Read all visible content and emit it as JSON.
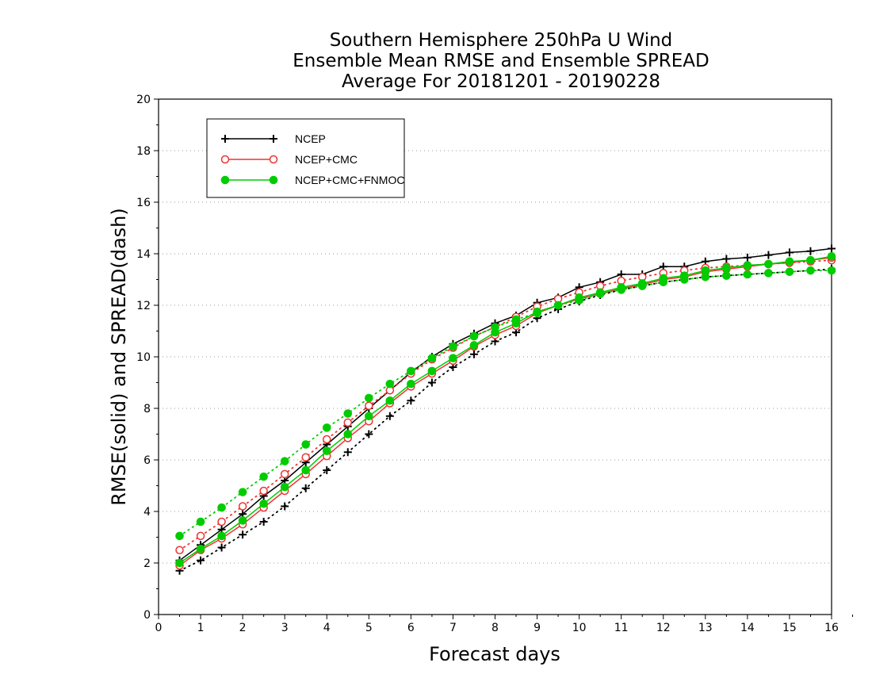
{
  "chart_data": {
    "type": "line",
    "title_lines": [
      "Southern Hemisphere 250hPa U Wind",
      "Ensemble Mean RMSE and Ensemble SPREAD",
      "Average For 20181201 - 20190228"
    ],
    "xlabel": "Forecast days",
    "ylabel": "RMSE(solid) and SPREAD(dash)",
    "xlim": [
      0,
      16
    ],
    "ylim": [
      0,
      20
    ],
    "xticks": [
      "0",
      "1",
      "2",
      "3",
      "4",
      "5",
      "6",
      "7",
      "8",
      "9",
      "10",
      "11",
      "12",
      "13",
      "14",
      "15",
      "16"
    ],
    "yticks": [
      "0",
      "2",
      "4",
      "6",
      "8",
      "10",
      "12",
      "14",
      "16",
      "18",
      "20"
    ],
    "grid": "horizontal dotted",
    "legend_position": "top-left",
    "x": [
      0.5,
      1,
      1.5,
      2,
      2.5,
      3,
      3.5,
      4,
      4.5,
      5,
      5.5,
      6,
      6.5,
      7,
      7.5,
      8,
      8.5,
      9,
      9.5,
      10,
      10.5,
      11,
      11.5,
      12,
      12.5,
      13,
      13.5,
      14,
      14.5,
      15,
      15.5,
      16
    ],
    "series": [
      {
        "name": "NCEP",
        "color": "#000000",
        "marker": "plus",
        "rmse": [
          2.1,
          2.7,
          3.3,
          3.9,
          4.6,
          5.2,
          5.9,
          6.6,
          7.3,
          8.0,
          8.7,
          9.4,
          10.0,
          10.5,
          10.9,
          11.3,
          11.6,
          12.1,
          12.3,
          12.7,
          12.9,
          13.2,
          13.2,
          13.5,
          13.5,
          13.7,
          13.8,
          13.85,
          13.95,
          14.05,
          14.1,
          14.2
        ],
        "spread": [
          1.7,
          2.1,
          2.6,
          3.1,
          3.6,
          4.2,
          4.9,
          5.6,
          6.3,
          7.0,
          7.7,
          8.3,
          9.0,
          9.6,
          10.1,
          10.6,
          10.95,
          11.5,
          11.85,
          12.15,
          12.4,
          12.6,
          12.75,
          12.9,
          13.0,
          13.1,
          13.15,
          13.2,
          13.25,
          13.3,
          13.35,
          13.4
        ]
      },
      {
        "name": "NCEP+CMC",
        "color": "#ee3333",
        "marker": "open-circle",
        "rmse": [
          1.9,
          2.5,
          2.95,
          3.5,
          4.15,
          4.8,
          5.45,
          6.15,
          6.85,
          7.5,
          8.2,
          8.85,
          9.35,
          9.85,
          10.4,
          10.85,
          11.2,
          11.7,
          12.0,
          12.25,
          12.45,
          12.65,
          12.8,
          13.0,
          13.1,
          13.3,
          13.4,
          13.5,
          13.6,
          13.65,
          13.75,
          13.85
        ],
        "spread": [
          2.5,
          3.05,
          3.6,
          4.2,
          4.8,
          5.45,
          6.1,
          6.8,
          7.45,
          8.1,
          8.7,
          9.35,
          9.9,
          10.35,
          10.8,
          11.15,
          11.55,
          11.95,
          12.25,
          12.5,
          12.75,
          12.95,
          13.1,
          13.25,
          13.35,
          13.45,
          13.5,
          13.55,
          13.6,
          13.65,
          13.7,
          13.75
        ]
      },
      {
        "name": "NCEP+CMC+FNMOC",
        "color": "#00cc00",
        "marker": "filled-circle",
        "rmse": [
          2.0,
          2.55,
          3.05,
          3.65,
          4.3,
          4.95,
          5.6,
          6.35,
          7.0,
          7.7,
          8.3,
          8.95,
          9.45,
          9.95,
          10.45,
          10.95,
          11.3,
          11.75,
          12.0,
          12.3,
          12.5,
          12.7,
          12.85,
          13.05,
          13.15,
          13.35,
          13.45,
          13.55,
          13.6,
          13.7,
          13.75,
          13.9
        ],
        "spread": [
          3.05,
          3.6,
          4.15,
          4.75,
          5.35,
          5.95,
          6.6,
          7.25,
          7.8,
          8.4,
          8.95,
          9.45,
          9.95,
          10.4,
          10.8,
          11.15,
          11.45,
          11.7,
          12.0,
          12.2,
          12.45,
          12.6,
          12.75,
          12.9,
          13.0,
          13.1,
          13.15,
          13.2,
          13.25,
          13.3,
          13.35,
          13.35
        ]
      }
    ]
  }
}
